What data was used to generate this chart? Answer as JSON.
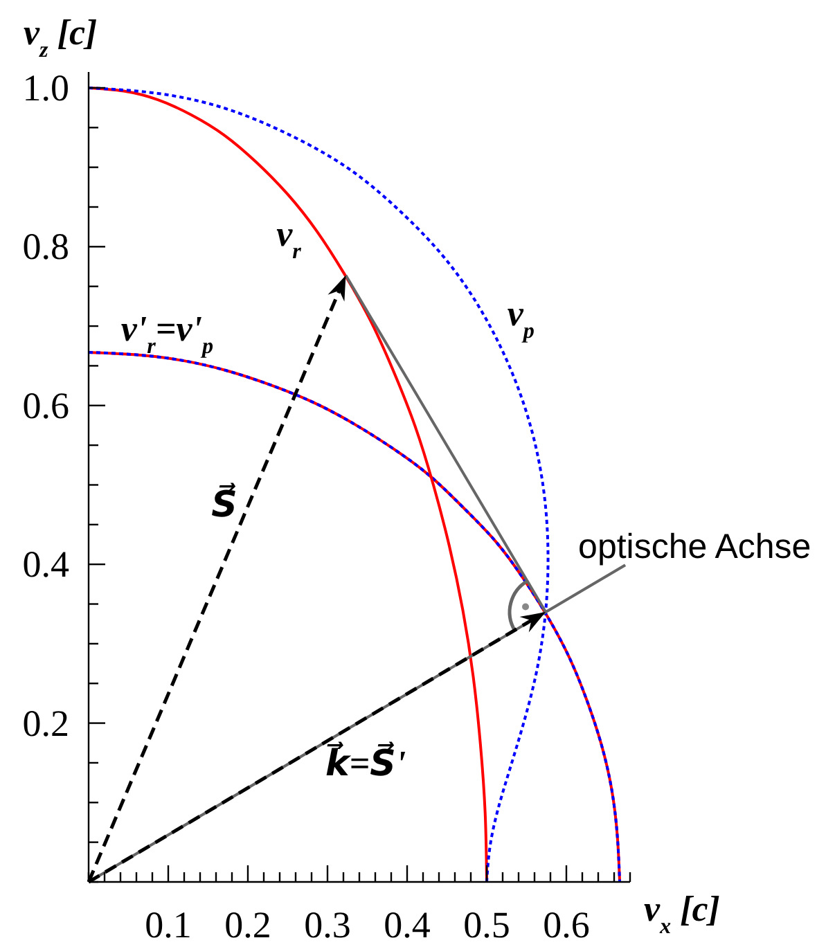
{
  "chart_data": {
    "type": "line",
    "xlabel": "v$_{x}$ [c]",
    "ylabel": "v$_{z}$ [c]",
    "xlim": [
      0,
      0.68
    ],
    "ylim": [
      0,
      1.02
    ],
    "xticks": [
      {
        "value": 0,
        "label": null
      },
      {
        "value": 0.02,
        "label": null
      },
      {
        "value": 0.04,
        "label": null
      },
      {
        "value": 0.06,
        "label": null
      },
      {
        "value": 0.08,
        "label": null
      },
      0.1,
      {
        "value": 0.12,
        "label": null
      },
      {
        "value": 0.14,
        "label": null
      },
      {
        "value": 0.16,
        "label": null
      },
      {
        "value": 0.18,
        "label": null
      },
      0.2,
      {
        "value": 0.22,
        "label": null
      },
      {
        "value": 0.24,
        "label": null
      },
      {
        "value": 0.26,
        "label": null
      },
      {
        "value": 0.28,
        "label": null
      },
      0.3,
      {
        "value": 0.32,
        "label": null
      },
      {
        "value": 0.34,
        "label": null
      },
      {
        "value": 0.36,
        "label": null
      },
      {
        "value": 0.38,
        "label": null
      },
      0.4,
      {
        "value": 0.42,
        "label": null
      },
      {
        "value": 0.44,
        "label": null
      },
      {
        "value": 0.46,
        "label": null
      },
      {
        "value": 0.48,
        "label": null
      },
      0.5,
      {
        "value": 0.52,
        "label": null
      },
      {
        "value": 0.54,
        "label": null
      },
      {
        "value": 0.56,
        "label": null
      },
      {
        "value": 0.58,
        "label": null
      },
      0.6,
      {
        "value": 0.62,
        "label": null
      },
      {
        "value": 0.64,
        "label": null
      },
      {
        "value": 0.66,
        "label": null
      },
      {
        "value": 0.68,
        "label": null
      }
    ],
    "yticks": [
      {
        "value": 0,
        "label": null
      },
      {
        "value": 0.05,
        "label": null
      },
      {
        "value": 0.1,
        "label": null
      },
      {
        "value": 0.15,
        "label": null
      },
      0.2,
      {
        "value": 0.25,
        "label": null
      },
      {
        "value": 0.3,
        "label": null
      },
      {
        "value": 0.35,
        "label": null
      },
      0.4,
      {
        "value": 0.45,
        "label": null
      },
      {
        "value": 0.5,
        "label": null
      },
      {
        "value": 0.55,
        "label": null
      },
      0.6,
      {
        "value": 0.65,
        "label": null
      },
      {
        "value": 0.7,
        "label": null
      },
      {
        "value": 0.75,
        "label": null
      },
      0.8,
      {
        "value": 0.85,
        "label": null
      },
      {
        "value": 0.9,
        "label": null
      },
      {
        "value": 0.95,
        "label": null
      },
      {
        "value": 1,
        "label": "1.0"
      }
    ],
    "annotations": [
      {
        "text": "optische Achse",
        "x": 0.674,
        "y": 0.399
      },
      "S⃗",
      "k⃗=S⃗'"
    ],
    "series": [
      {
        "name": "v'$_{r}$=v'$_{p}$",
        "color": "#ff0000",
        "x": [
          0,
          0.058,
          0.116,
          0.173,
          0.228,
          0.282,
          0.333,
          0.382,
          0.429,
          0.471,
          0.511,
          0.546,
          0.577,
          0.604,
          0.626,
          0.644,
          0.657,
          0.664,
          0.667
        ],
        "values": [
          0.667,
          0.664,
          0.657,
          0.644,
          0.626,
          0.604,
          0.577,
          0.546,
          0.511,
          0.471,
          0.429,
          0.382,
          0.333,
          0.282,
          0.228,
          0.173,
          0.116,
          0.058,
          0
        ]
      },
      {
        "color": "#0000ff",
        "line_style": "dotted",
        "x": [
          0,
          0.058,
          0.116,
          0.173,
          0.228,
          0.282,
          0.333,
          0.382,
          0.429,
          0.471,
          0.511,
          0.546,
          0.577,
          0.604,
          0.626,
          0.644,
          0.657,
          0.664,
          0.667
        ],
        "values": [
          0.667,
          0.664,
          0.657,
          0.644,
          0.626,
          0.604,
          0.577,
          0.546,
          0.511,
          0.471,
          0.429,
          0.382,
          0.333,
          0.282,
          0.228,
          0.173,
          0.116,
          0.058,
          0
        ]
      },
      {
        "name": "v$_{r}$",
        "color": "#ff0000",
        "x": [
          0,
          0.044,
          0.087,
          0.129,
          0.171,
          0.211,
          0.25,
          0.287,
          0.321,
          0.354,
          0.383,
          0.41,
          0.433,
          0.453,
          0.47,
          0.483,
          0.492,
          0.498,
          0.5
        ],
        "values": [
          1,
          0.996,
          0.985,
          0.966,
          0.94,
          0.906,
          0.866,
          0.819,
          0.766,
          0.707,
          0.643,
          0.574,
          0.5,
          0.423,
          0.342,
          0.259,
          0.174,
          0.087,
          0
        ]
      },
      {
        "name": "v$_{p}$",
        "color": "#0000ff",
        "line_style": "dotted",
        "x": [
          0,
          0.087,
          0.172,
          0.252,
          0.327,
          0.393,
          0.451,
          0.498,
          0.534,
          0.559,
          0.573,
          0.577,
          0.573,
          0.562,
          0.546,
          0.529,
          0.514,
          0.504,
          0.5
        ],
        "values": [
          1,
          0.993,
          0.974,
          0.941,
          0.898,
          0.843,
          0.781,
          0.711,
          0.636,
          0.559,
          0.481,
          0.404,
          0.331,
          0.262,
          0.199,
          0.142,
          0.091,
          0.044,
          0
        ]
      },
      {
        "color": "#666666",
        "x": [
          0,
          0.674
        ],
        "values": [
          0,
          0.399
        ]
      },
      {
        "color": "#666666",
        "x": [
          0.323,
          0.574
        ],
        "values": [
          0.764,
          0.34
        ]
      }
    ]
  }
}
